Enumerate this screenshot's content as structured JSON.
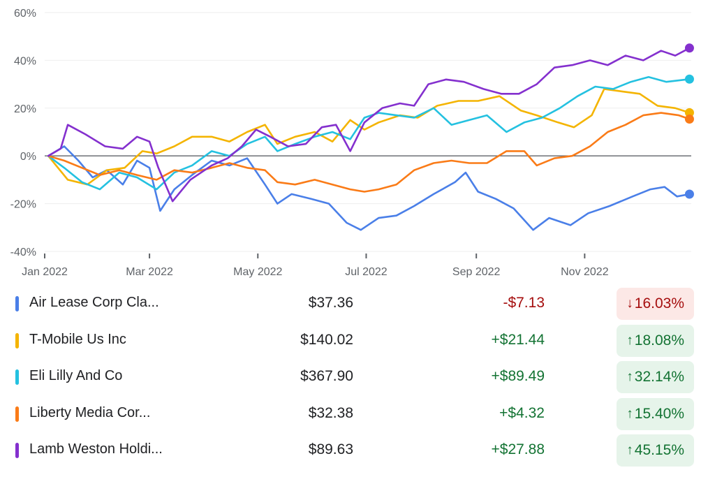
{
  "chart_data": {
    "type": "line",
    "y_unit": "%",
    "ylim": [
      -40,
      60
    ],
    "y_ticks": [
      60,
      40,
      20,
      0,
      -20,
      -40
    ],
    "y_tick_labels": [
      "60%",
      "40%",
      "20%",
      "0%",
      "-20%",
      "-40%"
    ],
    "x_range": [
      "2022-01-01",
      "2022-12-31"
    ],
    "x_ticks": [
      "2022-01-01",
      "2022-03-01",
      "2022-05-01",
      "2022-07-01",
      "2022-09-01",
      "2022-11-01"
    ],
    "x_tick_labels": [
      "Jan 2022",
      "Mar 2022",
      "May 2022",
      "Jul 2022",
      "Sep 2022",
      "Nov 2022"
    ],
    "grid": true,
    "zero_line": true,
    "series": [
      {
        "name": "Air Lease Corp Cla...",
        "color": "#4a7fe8",
        "points": [
          [
            "2022-01-03",
            0
          ],
          [
            "2022-01-12",
            4
          ],
          [
            "2022-01-20",
            -2
          ],
          [
            "2022-01-28",
            -9
          ],
          [
            "2022-02-05",
            -6
          ],
          [
            "2022-02-14",
            -12
          ],
          [
            "2022-02-22",
            -2
          ],
          [
            "2022-03-01",
            -5
          ],
          [
            "2022-03-07",
            -23
          ],
          [
            "2022-03-15",
            -14
          ],
          [
            "2022-03-25",
            -8
          ],
          [
            "2022-04-05",
            -2
          ],
          [
            "2022-04-15",
            -4
          ],
          [
            "2022-04-25",
            -1
          ],
          [
            "2022-05-05",
            -12
          ],
          [
            "2022-05-12",
            -20
          ],
          [
            "2022-05-20",
            -16
          ],
          [
            "2022-05-31",
            -18
          ],
          [
            "2022-06-10",
            -20
          ],
          [
            "2022-06-20",
            -28
          ],
          [
            "2022-06-28",
            -31
          ],
          [
            "2022-07-08",
            -26
          ],
          [
            "2022-07-18",
            -25
          ],
          [
            "2022-07-28",
            -21
          ],
          [
            "2022-08-08",
            -16
          ],
          [
            "2022-08-20",
            -11
          ],
          [
            "2022-08-26",
            -7
          ],
          [
            "2022-09-02",
            -15
          ],
          [
            "2022-09-12",
            -18
          ],
          [
            "2022-09-22",
            -22
          ],
          [
            "2022-10-03",
            -31
          ],
          [
            "2022-10-12",
            -26
          ],
          [
            "2022-10-24",
            -29
          ],
          [
            "2022-11-03",
            -24
          ],
          [
            "2022-11-15",
            -21
          ],
          [
            "2022-11-28",
            -17
          ],
          [
            "2022-12-08",
            -14
          ],
          [
            "2022-12-16",
            -13
          ],
          [
            "2022-12-23",
            -17
          ],
          [
            "2022-12-30",
            -16.03
          ]
        ]
      },
      {
        "name": "T-Mobile Us Inc",
        "color": "#f4b400",
        "points": [
          [
            "2022-01-03",
            0
          ],
          [
            "2022-01-14",
            -10
          ],
          [
            "2022-01-25",
            -12
          ],
          [
            "2022-02-05",
            -6
          ],
          [
            "2022-02-15",
            -5
          ],
          [
            "2022-02-25",
            2
          ],
          [
            "2022-03-05",
            1
          ],
          [
            "2022-03-15",
            4
          ],
          [
            "2022-03-25",
            8
          ],
          [
            "2022-04-05",
            8
          ],
          [
            "2022-04-15",
            6
          ],
          [
            "2022-04-25",
            10
          ],
          [
            "2022-05-05",
            13
          ],
          [
            "2022-05-12",
            5
          ],
          [
            "2022-05-22",
            8
          ],
          [
            "2022-06-02",
            10
          ],
          [
            "2022-06-12",
            6
          ],
          [
            "2022-06-22",
            15
          ],
          [
            "2022-06-30",
            11
          ],
          [
            "2022-07-08",
            14
          ],
          [
            "2022-07-20",
            17
          ],
          [
            "2022-07-30",
            16
          ],
          [
            "2022-08-10",
            21
          ],
          [
            "2022-08-22",
            23
          ],
          [
            "2022-09-02",
            23
          ],
          [
            "2022-09-14",
            25
          ],
          [
            "2022-09-26",
            19
          ],
          [
            "2022-10-05",
            17
          ],
          [
            "2022-10-17",
            14
          ],
          [
            "2022-10-26",
            12
          ],
          [
            "2022-11-05",
            17
          ],
          [
            "2022-11-12",
            28
          ],
          [
            "2022-11-22",
            27
          ],
          [
            "2022-12-02",
            26
          ],
          [
            "2022-12-12",
            21
          ],
          [
            "2022-12-22",
            20
          ],
          [
            "2022-12-30",
            18.08
          ]
        ]
      },
      {
        "name": "Eli Lilly And Co",
        "color": "#24c1e0",
        "points": [
          [
            "2022-01-03",
            0
          ],
          [
            "2022-01-12",
            -5
          ],
          [
            "2022-01-22",
            -11
          ],
          [
            "2022-02-01",
            -14
          ],
          [
            "2022-02-12",
            -7
          ],
          [
            "2022-02-22",
            -9
          ],
          [
            "2022-03-05",
            -14
          ],
          [
            "2022-03-15",
            -7
          ],
          [
            "2022-03-25",
            -4
          ],
          [
            "2022-04-05",
            2
          ],
          [
            "2022-04-15",
            0
          ],
          [
            "2022-04-25",
            5
          ],
          [
            "2022-05-05",
            8
          ],
          [
            "2022-05-12",
            2
          ],
          [
            "2022-05-22",
            5
          ],
          [
            "2022-06-02",
            8
          ],
          [
            "2022-06-12",
            10
          ],
          [
            "2022-06-22",
            7
          ],
          [
            "2022-06-30",
            16
          ],
          [
            "2022-07-08",
            18
          ],
          [
            "2022-07-18",
            17
          ],
          [
            "2022-07-28",
            16
          ],
          [
            "2022-08-08",
            20
          ],
          [
            "2022-08-18",
            13
          ],
          [
            "2022-08-28",
            15
          ],
          [
            "2022-09-07",
            17
          ],
          [
            "2022-09-18",
            10
          ],
          [
            "2022-09-28",
            14
          ],
          [
            "2022-10-08",
            16
          ],
          [
            "2022-10-18",
            20
          ],
          [
            "2022-10-28",
            25
          ],
          [
            "2022-11-07",
            29
          ],
          [
            "2022-11-17",
            28
          ],
          [
            "2022-11-27",
            31
          ],
          [
            "2022-12-07",
            33
          ],
          [
            "2022-12-17",
            31
          ],
          [
            "2022-12-30",
            32.14
          ]
        ]
      },
      {
        "name": "Liberty Media Cor...",
        "color": "#fa7b17",
        "points": [
          [
            "2022-01-03",
            0
          ],
          [
            "2022-01-12",
            -2
          ],
          [
            "2022-01-22",
            -5
          ],
          [
            "2022-02-01",
            -8
          ],
          [
            "2022-02-12",
            -6
          ],
          [
            "2022-02-22",
            -8
          ],
          [
            "2022-03-05",
            -10
          ],
          [
            "2022-03-15",
            -6
          ],
          [
            "2022-03-25",
            -7
          ],
          [
            "2022-04-05",
            -5
          ],
          [
            "2022-04-15",
            -3
          ],
          [
            "2022-04-25",
            -5
          ],
          [
            "2022-05-05",
            -6
          ],
          [
            "2022-05-12",
            -11
          ],
          [
            "2022-05-22",
            -12
          ],
          [
            "2022-06-02",
            -10
          ],
          [
            "2022-06-12",
            -12
          ],
          [
            "2022-06-22",
            -14
          ],
          [
            "2022-06-30",
            -15
          ],
          [
            "2022-07-08",
            -14
          ],
          [
            "2022-07-18",
            -12
          ],
          [
            "2022-07-28",
            -6
          ],
          [
            "2022-08-08",
            -3
          ],
          [
            "2022-08-18",
            -2
          ],
          [
            "2022-08-28",
            -3
          ],
          [
            "2022-09-07",
            -3
          ],
          [
            "2022-09-18",
            2
          ],
          [
            "2022-09-28",
            2
          ],
          [
            "2022-10-05",
            -4
          ],
          [
            "2022-10-15",
            -1
          ],
          [
            "2022-10-25",
            0
          ],
          [
            "2022-11-04",
            4
          ],
          [
            "2022-11-14",
            10
          ],
          [
            "2022-11-24",
            13
          ],
          [
            "2022-12-04",
            17
          ],
          [
            "2022-12-14",
            18
          ],
          [
            "2022-12-24",
            17
          ],
          [
            "2022-12-30",
            15.4
          ]
        ]
      },
      {
        "name": "Lamb Weston Holdi...",
        "color": "#8430ce",
        "points": [
          [
            "2022-01-03",
            0
          ],
          [
            "2022-01-10",
            3
          ],
          [
            "2022-01-14",
            13
          ],
          [
            "2022-01-24",
            9
          ],
          [
            "2022-02-04",
            4
          ],
          [
            "2022-02-14",
            3
          ],
          [
            "2022-02-22",
            8
          ],
          [
            "2022-03-01",
            6
          ],
          [
            "2022-03-06",
            -5
          ],
          [
            "2022-03-14",
            -19
          ],
          [
            "2022-03-24",
            -10
          ],
          [
            "2022-04-05",
            -4
          ],
          [
            "2022-04-14",
            -1
          ],
          [
            "2022-04-22",
            4
          ],
          [
            "2022-04-30",
            11
          ],
          [
            "2022-05-08",
            8
          ],
          [
            "2022-05-18",
            4
          ],
          [
            "2022-05-28",
            5
          ],
          [
            "2022-06-06",
            12
          ],
          [
            "2022-06-14",
            13
          ],
          [
            "2022-06-22",
            2
          ],
          [
            "2022-06-30",
            14
          ],
          [
            "2022-07-10",
            20
          ],
          [
            "2022-07-20",
            22
          ],
          [
            "2022-07-28",
            21
          ],
          [
            "2022-08-05",
            30
          ],
          [
            "2022-08-15",
            32
          ],
          [
            "2022-08-25",
            31
          ],
          [
            "2022-09-05",
            28
          ],
          [
            "2022-09-15",
            26
          ],
          [
            "2022-09-25",
            26
          ],
          [
            "2022-10-05",
            30
          ],
          [
            "2022-10-15",
            37
          ],
          [
            "2022-10-25",
            38
          ],
          [
            "2022-11-04",
            40
          ],
          [
            "2022-11-14",
            38
          ],
          [
            "2022-11-24",
            42
          ],
          [
            "2022-12-04",
            40
          ],
          [
            "2022-12-14",
            44
          ],
          [
            "2022-12-22",
            42
          ],
          [
            "2022-12-30",
            45.15
          ]
        ]
      }
    ]
  },
  "legend": {
    "rows": [
      {
        "name": "Air Lease Corp Cla...",
        "price": "$37.36",
        "change": "-$7.13",
        "pct": "16.03%",
        "direction": "down",
        "arrow": "↓"
      },
      {
        "name": "T-Mobile Us Inc",
        "price": "$140.02",
        "change": "+$21.44",
        "pct": "18.08%",
        "direction": "up",
        "arrow": "↑"
      },
      {
        "name": "Eli Lilly And Co",
        "price": "$367.90",
        "change": "+$89.49",
        "pct": "32.14%",
        "direction": "up",
        "arrow": "↑"
      },
      {
        "name": "Liberty Media Cor...",
        "price": "$32.38",
        "change": "+$4.32",
        "pct": "15.40%",
        "direction": "up",
        "arrow": "↑"
      },
      {
        "name": "Lamb Weston Holdi...",
        "price": "$89.63",
        "change": "+$27.88",
        "pct": "45.15%",
        "direction": "up",
        "arrow": "↑"
      }
    ]
  },
  "colors": {
    "positive_text": "#137333",
    "positive_bg": "#e6f4ea",
    "negative_text": "#a50e0e",
    "negative_bg": "#fce8e6",
    "grid": "#eeeeee",
    "zero_line": "#5f6368",
    "axis_text": "#5f6368"
  }
}
